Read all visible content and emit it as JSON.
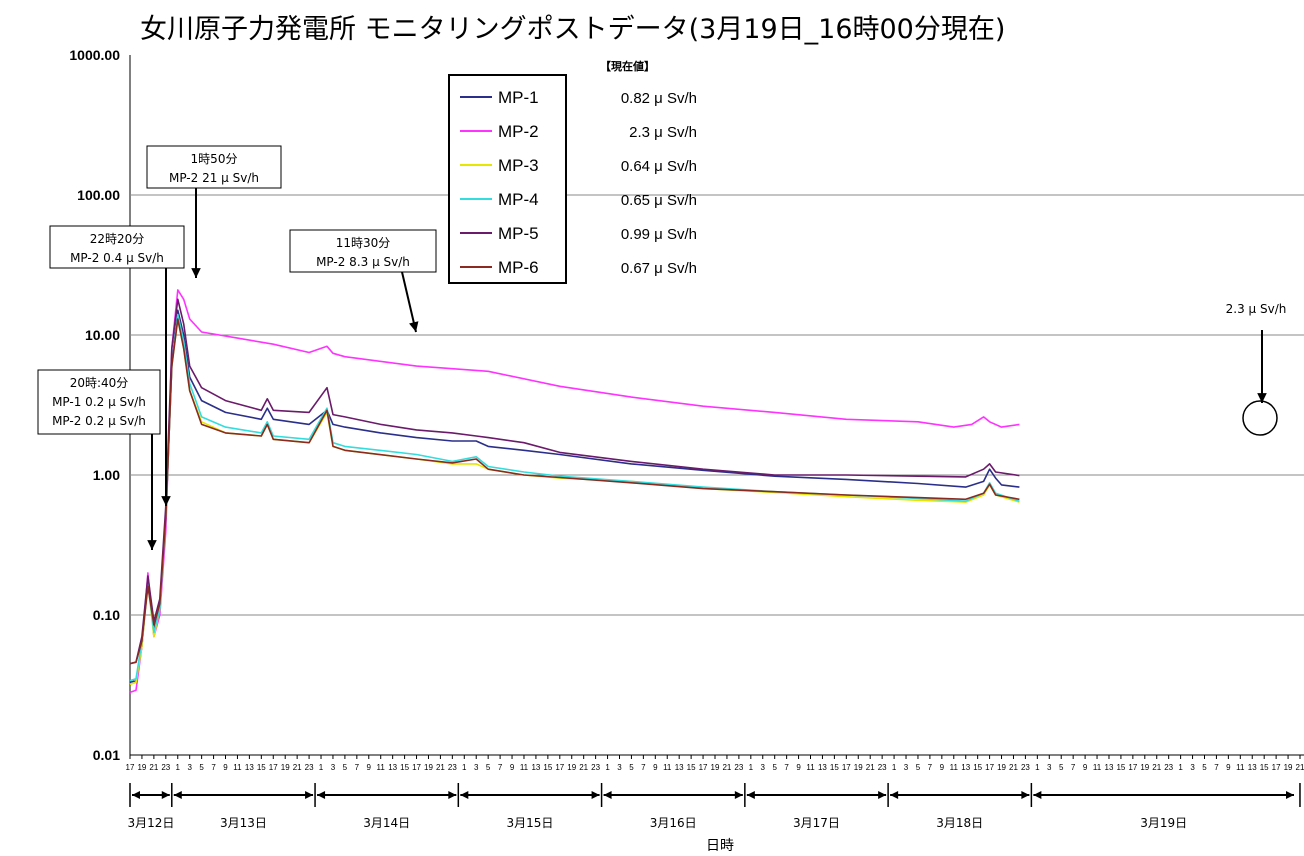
{
  "chart_data": {
    "type": "line",
    "title": "女川原子力発電所 モニタリングポストデータ(3月19日_16時00分現在)",
    "xlabel": "日時",
    "ylabel": "",
    "y_scale": "log",
    "ylim": [
      0.01,
      1000
    ],
    "yticks": [
      "1000.00",
      "100.00",
      "10.00",
      "1.00",
      "0.10",
      "0.01"
    ],
    "x_start": "3月12日 17時",
    "x_end": "3月19日 21時",
    "hour_ticks": [
      "17",
      "19",
      "21",
      "23",
      "1",
      "3",
      "5",
      "7",
      "9",
      "11",
      "13",
      "15",
      "17",
      "19",
      "21",
      "23",
      "1",
      "3",
      "5",
      "7",
      "9",
      "11",
      "13",
      "15",
      "17",
      "19",
      "21",
      "23",
      "1",
      "3",
      "5",
      "7",
      "9",
      "11",
      "13",
      "15",
      "17",
      "19",
      "21",
      "23",
      "1",
      "3",
      "5",
      "7",
      "9",
      "11",
      "13",
      "15",
      "17",
      "19",
      "21",
      "23",
      "1",
      "3",
      "5",
      "7",
      "9",
      "11",
      "13",
      "15",
      "17",
      "19",
      "21",
      "23",
      "1",
      "3",
      "5",
      "7",
      "9",
      "11",
      "13",
      "15",
      "17",
      "19",
      "21",
      "23",
      "1",
      "3",
      "5",
      "7",
      "9",
      "11",
      "13",
      "15",
      "17",
      "19",
      "21",
      "23",
      "1",
      "3",
      "5",
      "7",
      "9",
      "11",
      "13",
      "15",
      "17",
      "19",
      "21"
    ],
    "days": [
      "3月12日",
      "3月13日",
      "3月14日",
      "3月15日",
      "3月16日",
      "3月17日",
      "3月18日",
      "3月19日"
    ],
    "grid": true,
    "legend": {
      "placement": "top-center",
      "header": "【現在値】",
      "entries": [
        {
          "name": "MP-1",
          "value": "0.82 μ Sv/h",
          "color": "#2b2f8a"
        },
        {
          "name": "MP-2",
          "value": "2.3 μ Sv/h",
          "color": "#ff33ff"
        },
        {
          "name": "MP-3",
          "value": "0.64 μ Sv/h",
          "color": "#e6e600"
        },
        {
          "name": "MP-4",
          "value": "0.65 μ Sv/h",
          "color": "#33dddd"
        },
        {
          "name": "MP-5",
          "value": "0.99 μ Sv/h",
          "color": "#6a1b6a"
        },
        {
          "name": "MP-6",
          "value": "0.67 μ Sv/h",
          "color": "#8b2a20"
        }
      ]
    },
    "series": [
      {
        "name": "MP-1",
        "color": "#2b2f8a",
        "points": [
          [
            0,
            0.033
          ],
          [
            1,
            0.034
          ],
          [
            2,
            0.06
          ],
          [
            3,
            0.18
          ],
          [
            4,
            0.08
          ],
          [
            5,
            0.12
          ],
          [
            6,
            0.5
          ],
          [
            7,
            6
          ],
          [
            8,
            15
          ],
          [
            9,
            10
          ],
          [
            10,
            5
          ],
          [
            12,
            3.4
          ],
          [
            16,
            2.8
          ],
          [
            22,
            2.5
          ],
          [
            23,
            3.0
          ],
          [
            24,
            2.5
          ],
          [
            30,
            2.3
          ],
          [
            33,
            2.9
          ],
          [
            34,
            2.3
          ],
          [
            36,
            2.2
          ],
          [
            42,
            2.0
          ],
          [
            48,
            1.85
          ],
          [
            54,
            1.75
          ],
          [
            58,
            1.75
          ],
          [
            60,
            1.6
          ],
          [
            66,
            1.5
          ],
          [
            72,
            1.4
          ],
          [
            84,
            1.2
          ],
          [
            96,
            1.08
          ],
          [
            108,
            0.98
          ],
          [
            120,
            0.93
          ],
          [
            132,
            0.87
          ],
          [
            140,
            0.82
          ],
          [
            143,
            0.9
          ],
          [
            144,
            1.1
          ],
          [
            145,
            0.95
          ],
          [
            146,
            0.85
          ],
          [
            149,
            0.82
          ]
        ]
      },
      {
        "name": "MP-2",
        "color": "#ff33ff",
        "points": [
          [
            0,
            0.028
          ],
          [
            1,
            0.029
          ],
          [
            2,
            0.06
          ],
          [
            3,
            0.2
          ],
          [
            4,
            0.07
          ],
          [
            5,
            0.1
          ],
          [
            6,
            0.4
          ],
          [
            7,
            8
          ],
          [
            8,
            21
          ],
          [
            9,
            18
          ],
          [
            10,
            13
          ],
          [
            12,
            10.5
          ],
          [
            18,
            9.5
          ],
          [
            24,
            8.6
          ],
          [
            30,
            7.5
          ],
          [
            33,
            8.3
          ],
          [
            34,
            7.4
          ],
          [
            36,
            7.0
          ],
          [
            48,
            6.0
          ],
          [
            60,
            5.5
          ],
          [
            72,
            4.3
          ],
          [
            84,
            3.6
          ],
          [
            96,
            3.1
          ],
          [
            108,
            2.8
          ],
          [
            120,
            2.5
          ],
          [
            132,
            2.4
          ],
          [
            138,
            2.2
          ],
          [
            141,
            2.3
          ],
          [
            143,
            2.6
          ],
          [
            144,
            2.4
          ],
          [
            146,
            2.2
          ],
          [
            149,
            2.3
          ]
        ]
      },
      {
        "name": "MP-3",
        "color": "#e6e600",
        "points": [
          [
            0,
            0.032
          ],
          [
            1,
            0.033
          ],
          [
            2,
            0.06
          ],
          [
            3,
            0.17
          ],
          [
            4,
            0.07
          ],
          [
            5,
            0.11
          ],
          [
            6,
            0.5
          ],
          [
            7,
            6
          ],
          [
            8,
            13
          ],
          [
            9,
            8
          ],
          [
            10,
            4
          ],
          [
            12,
            2.4
          ],
          [
            16,
            2.0
          ],
          [
            22,
            1.9
          ],
          [
            23,
            2.3
          ],
          [
            24,
            1.8
          ],
          [
            30,
            1.7
          ],
          [
            33,
            2.8
          ],
          [
            34,
            1.6
          ],
          [
            36,
            1.5
          ],
          [
            48,
            1.3
          ],
          [
            54,
            1.2
          ],
          [
            58,
            1.2
          ],
          [
            60,
            1.1
          ],
          [
            66,
            1.0
          ],
          [
            72,
            0.95
          ],
          [
            84,
            0.9
          ],
          [
            96,
            0.8
          ],
          [
            108,
            0.75
          ],
          [
            120,
            0.7
          ],
          [
            132,
            0.66
          ],
          [
            140,
            0.64
          ],
          [
            143,
            0.72
          ],
          [
            144,
            0.85
          ],
          [
            145,
            0.72
          ],
          [
            149,
            0.64
          ]
        ]
      },
      {
        "name": "MP-4",
        "color": "#33dddd",
        "points": [
          [
            0,
            0.034
          ],
          [
            1,
            0.035
          ],
          [
            2,
            0.065
          ],
          [
            3,
            0.17
          ],
          [
            4,
            0.075
          ],
          [
            5,
            0.11
          ],
          [
            6,
            0.5
          ],
          [
            7,
            6
          ],
          [
            8,
            14
          ],
          [
            9,
            9
          ],
          [
            10,
            4.5
          ],
          [
            12,
            2.6
          ],
          [
            16,
            2.2
          ],
          [
            22,
            2.0
          ],
          [
            23,
            2.4
          ],
          [
            24,
            1.9
          ],
          [
            30,
            1.8
          ],
          [
            33,
            3.0
          ],
          [
            34,
            1.7
          ],
          [
            36,
            1.6
          ],
          [
            48,
            1.4
          ],
          [
            54,
            1.25
          ],
          [
            58,
            1.35
          ],
          [
            60,
            1.15
          ],
          [
            66,
            1.05
          ],
          [
            72,
            0.98
          ],
          [
            84,
            0.9
          ],
          [
            96,
            0.82
          ],
          [
            108,
            0.76
          ],
          [
            120,
            0.72
          ],
          [
            132,
            0.68
          ],
          [
            140,
            0.65
          ],
          [
            143,
            0.74
          ],
          [
            144,
            0.88
          ],
          [
            145,
            0.74
          ],
          [
            149,
            0.65
          ]
        ]
      },
      {
        "name": "MP-5",
        "color": "#6a1b6a",
        "points": [
          [
            0,
            0.045
          ],
          [
            1,
            0.046
          ],
          [
            2,
            0.07
          ],
          [
            3,
            0.19
          ],
          [
            4,
            0.09
          ],
          [
            5,
            0.13
          ],
          [
            6,
            0.6
          ],
          [
            7,
            8
          ],
          [
            8,
            18
          ],
          [
            9,
            12
          ],
          [
            10,
            6
          ],
          [
            12,
            4.2
          ],
          [
            16,
            3.4
          ],
          [
            22,
            2.9
          ],
          [
            23,
            3.5
          ],
          [
            24,
            2.9
          ],
          [
            30,
            2.8
          ],
          [
            33,
            4.2
          ],
          [
            34,
            2.7
          ],
          [
            36,
            2.6
          ],
          [
            42,
            2.3
          ],
          [
            48,
            2.1
          ],
          [
            54,
            2.0
          ],
          [
            58,
            1.9
          ],
          [
            60,
            1.85
          ],
          [
            66,
            1.7
          ],
          [
            72,
            1.45
          ],
          [
            84,
            1.25
          ],
          [
            96,
            1.1
          ],
          [
            108,
            1.0
          ],
          [
            120,
            1.0
          ],
          [
            132,
            0.98
          ],
          [
            140,
            0.97
          ],
          [
            143,
            1.1
          ],
          [
            144,
            1.2
          ],
          [
            145,
            1.05
          ],
          [
            149,
            0.99
          ]
        ]
      },
      {
        "name": "MP-6",
        "color": "#8b2a20",
        "points": [
          [
            0,
            0.045
          ],
          [
            1,
            0.046
          ],
          [
            2,
            0.065
          ],
          [
            3,
            0.16
          ],
          [
            4,
            0.085
          ],
          [
            5,
            0.12
          ],
          [
            6,
            0.5
          ],
          [
            7,
            6
          ],
          [
            8,
            13
          ],
          [
            9,
            8
          ],
          [
            10,
            4
          ],
          [
            12,
            2.3
          ],
          [
            16,
            2.0
          ],
          [
            22,
            1.9
          ],
          [
            23,
            2.3
          ],
          [
            24,
            1.8
          ],
          [
            30,
            1.7
          ],
          [
            33,
            2.9
          ],
          [
            34,
            1.6
          ],
          [
            36,
            1.5
          ],
          [
            48,
            1.3
          ],
          [
            54,
            1.22
          ],
          [
            58,
            1.3
          ],
          [
            60,
            1.1
          ],
          [
            66,
            1.0
          ],
          [
            72,
            0.96
          ],
          [
            84,
            0.88
          ],
          [
            96,
            0.8
          ],
          [
            108,
            0.76
          ],
          [
            120,
            0.72
          ],
          [
            132,
            0.69
          ],
          [
            140,
            0.67
          ],
          [
            143,
            0.74
          ],
          [
            144,
            0.86
          ],
          [
            145,
            0.72
          ],
          [
            149,
            0.67
          ]
        ]
      }
    ],
    "annotations": [
      {
        "time": "1時50分",
        "text": "MP-2 21 μ Sv/h"
      },
      {
        "time": "22時20分",
        "text": "MP-2 0.4 μ Sv/h"
      },
      {
        "time": "11時30分",
        "text": "MP-2 8.3 μ Sv/h"
      },
      {
        "time": "20時:40分",
        "text": "MP-1 0.2 μ Sv/h",
        "text2": "MP-2 0.2 μ Sv/h"
      },
      {
        "time": "",
        "text": "2.3 μ Sv/h"
      }
    ]
  }
}
